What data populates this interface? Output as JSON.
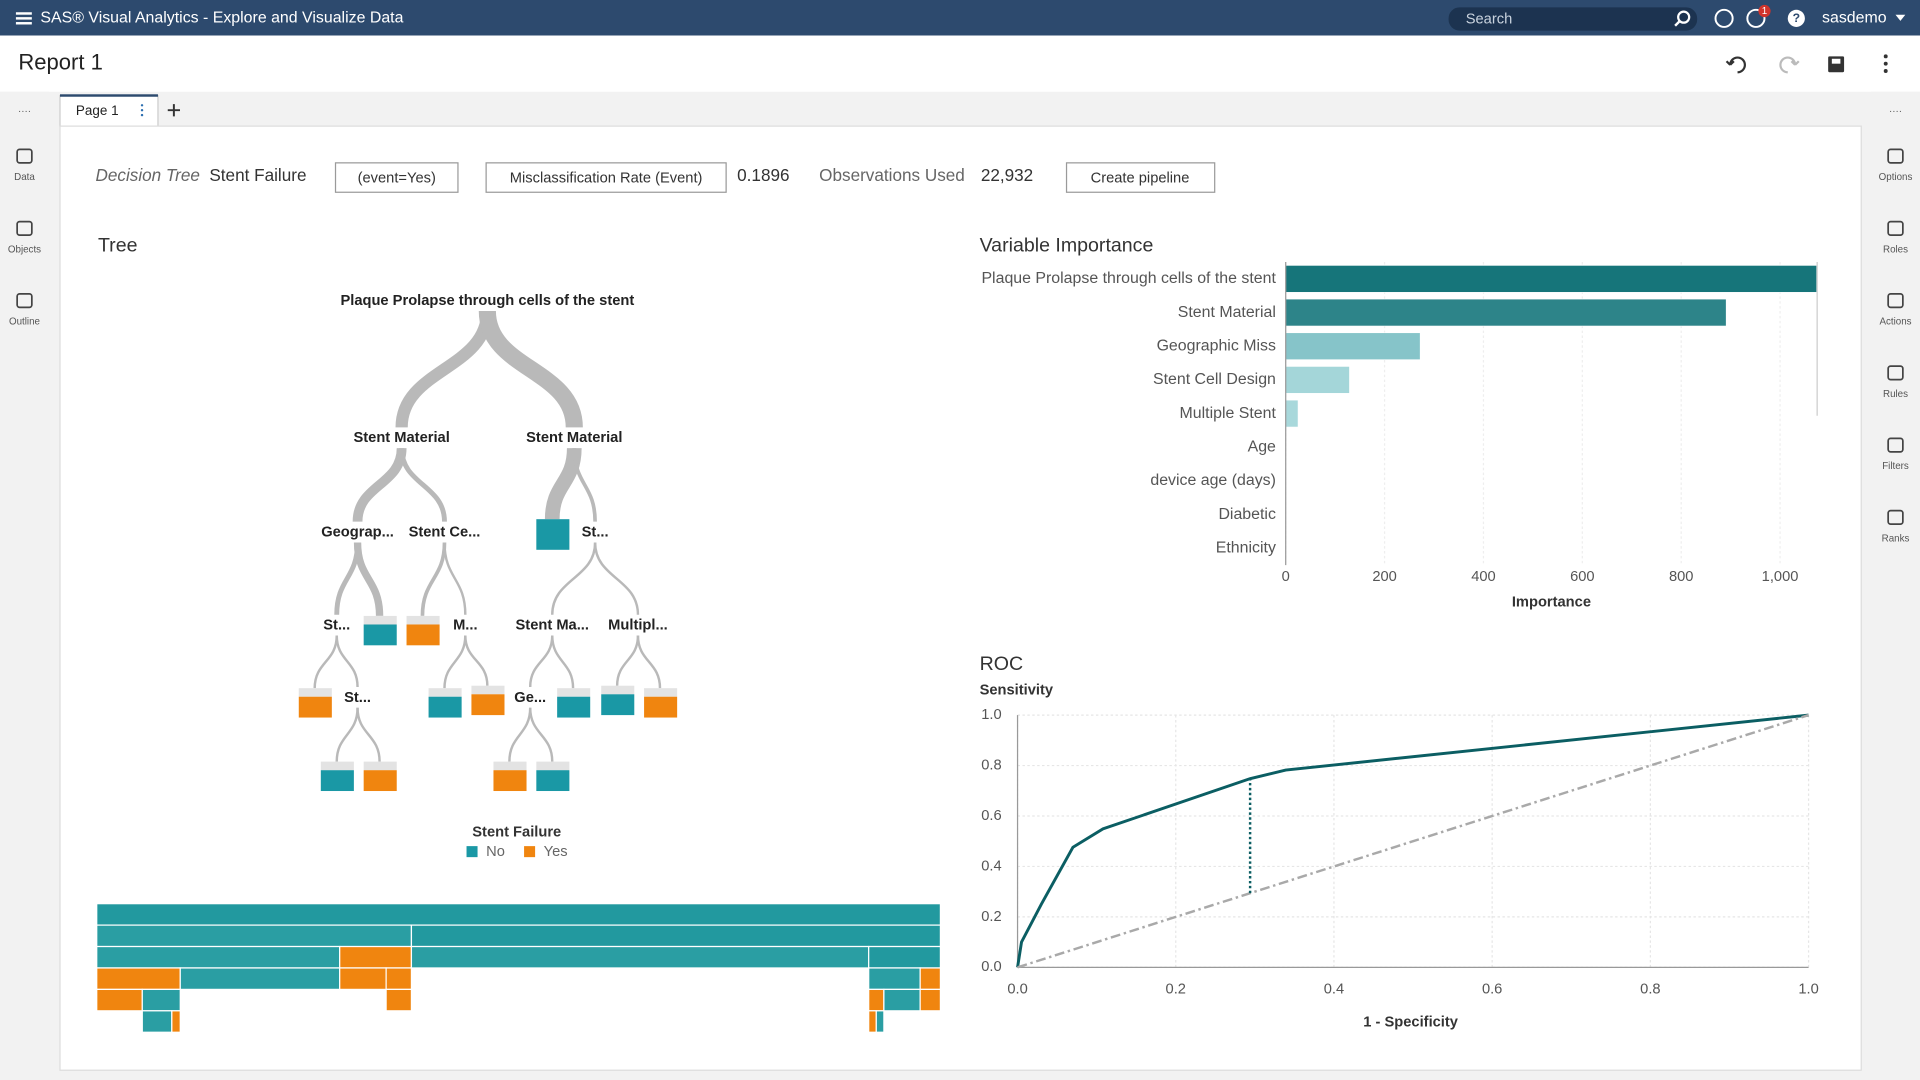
{
  "app": {
    "title": "SAS® Visual Analytics - Explore and Visualize Data",
    "search": "Search",
    "notifications": 1,
    "user": "sasdemo"
  },
  "report": {
    "title": "Report 1",
    "tab": "Page 1"
  },
  "left_rail": [
    "Data",
    "Objects",
    "Outline"
  ],
  "right_rail": [
    "Options",
    "Roles",
    "Actions",
    "Rules",
    "Filters",
    "Ranks"
  ],
  "header": {
    "model": "Decision Tree",
    "target": "Stent Failure",
    "event": "(event=Yes)",
    "metric": "Misclassification Rate (Event)",
    "metric_value": 0.1896,
    "observations_label": "Observations Used",
    "observations_value": "22,932",
    "pipeline": "Create pipeline"
  },
  "tree": {
    "title": "Tree",
    "nodes": [
      "Plaque Prolapse through cells of the stent",
      "Stent Material",
      "Stent Material",
      "Geograp...",
      "Stent Ce...",
      "St...",
      "St...",
      "M...",
      "Stent Ma...",
      "Multipl...",
      "St...",
      "Ge..."
    ],
    "legend_title": "Stent Failure",
    "legend": [
      {
        "name": "No",
        "color": "#1a98a5"
      },
      {
        "name": "Yes",
        "color": "#f0850f"
      }
    ],
    "icicle": [
      [
        {
          "start": 0,
          "share": 1,
          "color": "#22999f"
        }
      ],
      [
        {
          "start": 0,
          "share": 0.373,
          "color": "#2a9ea3"
        },
        {
          "start": 0.373,
          "share": 0.627,
          "color": "#22999f"
        }
      ],
      [
        {
          "start": 0,
          "share": 0.288,
          "color": "#2a9ea3"
        },
        {
          "start": 0.288,
          "share": 0.085,
          "color": "#f0850f"
        },
        {
          "start": 0.373,
          "share": 0.542,
          "color": "#2a9ea3"
        },
        {
          "start": 0.915,
          "share": 0.085,
          "color": "#22999f"
        }
      ],
      [
        {
          "start": 0,
          "share": 0.099,
          "color": "#f0850f"
        },
        {
          "start": 0.099,
          "share": 0.189,
          "color": "#2a9ea3"
        },
        {
          "start": 0.288,
          "share": 0.055,
          "color": "#f0850f"
        },
        {
          "start": 0.343,
          "share": 0.03,
          "color": "#f0850f"
        },
        {
          "start": 0.915,
          "share": 0.061,
          "color": "#2a9ea3"
        },
        {
          "start": 0.976,
          "share": 0.024,
          "color": "#f0850f"
        }
      ],
      [
        {
          "start": 0,
          "share": 0.054,
          "color": "#f0850f"
        },
        {
          "start": 0.054,
          "share": 0.045,
          "color": "#2a9ea3"
        },
        {
          "start": 0.343,
          "share": 0.03,
          "color": "#f0850f"
        },
        {
          "start": 0.915,
          "share": 0.018,
          "color": "#f0850f"
        },
        {
          "start": 0.933,
          "share": 0.043,
          "color": "#2a9ea3"
        },
        {
          "start": 0.976,
          "share": 0.024,
          "color": "#f0850f"
        }
      ],
      [
        {
          "start": 0.054,
          "share": 0.035,
          "color": "#2a9ea3"
        },
        {
          "start": 0.089,
          "share": 0.01,
          "color": "#f0850f"
        },
        {
          "start": 0.915,
          "share": 0.009,
          "color": "#f0850f"
        },
        {
          "start": 0.924,
          "share": 0.009,
          "color": "#2a9ea3"
        }
      ]
    ]
  },
  "chart_data": [
    {
      "type": "bar",
      "orientation": "horizontal",
      "title": "Variable Importance",
      "categories": [
        "Plaque Prolapse through cells of the stent",
        "Stent Material",
        "Geographic Miss",
        "Stent Cell Design",
        "Multiple Stent",
        "Age",
        "device age (days)",
        "Diabetic",
        "Ethnicity"
      ],
      "values": [
        1074,
        891,
        272,
        129,
        25,
        0,
        0,
        0,
        0
      ],
      "colors": [
        "#16757a",
        "#2d8489",
        "#86c4c9",
        "#a4d6d9",
        "#a8d8db",
        "#a8d8db",
        "#a8d8db",
        "#a8d8db",
        "#a8d8db"
      ],
      "xlim": [
        0,
        1075
      ],
      "xticks": [
        0,
        200,
        400,
        600,
        800,
        {
          "value": 1000,
          "label": "1,000"
        }
      ],
      "xlabel": "Importance",
      "grid": true
    },
    {
      "type": "line",
      "title": "ROC",
      "ylabel": "Sensitivity",
      "xlabel": "1 - Specificity",
      "series": [
        {
          "x": [
            0,
            0.005,
            0.03,
            0.07,
            0.108,
            0.294,
            0.339,
            1
          ],
          "values": [
            0,
            0.1,
            0.25,
            0.476,
            0.549,
            0.748,
            0.782,
            1
          ],
          "color": "#0b5e63",
          "dash": "none"
        },
        {
          "x": [
            0,
            1
          ],
          "values": [
            0,
            1
          ],
          "color": "#a9a9a9",
          "dash": "8 3 2 3"
        }
      ],
      "ks": {
        "x": 0.294,
        "low": 0.294,
        "high": 0.748,
        "color": "#0b5e63"
      },
      "xlim": [
        0,
        1
      ],
      "ylim": [
        0,
        1
      ],
      "xticks": [
        {
          "value": 0,
          "label": "0.0"
        },
        0.2,
        0.4,
        0.6,
        0.8,
        {
          "value": 1,
          "label": "1.0"
        }
      ],
      "yticks": [
        {
          "value": 0,
          "label": "0.0"
        },
        0.2,
        0.4,
        0.6,
        0.8,
        {
          "value": 1,
          "label": "1.0"
        }
      ],
      "grid": true
    }
  ]
}
